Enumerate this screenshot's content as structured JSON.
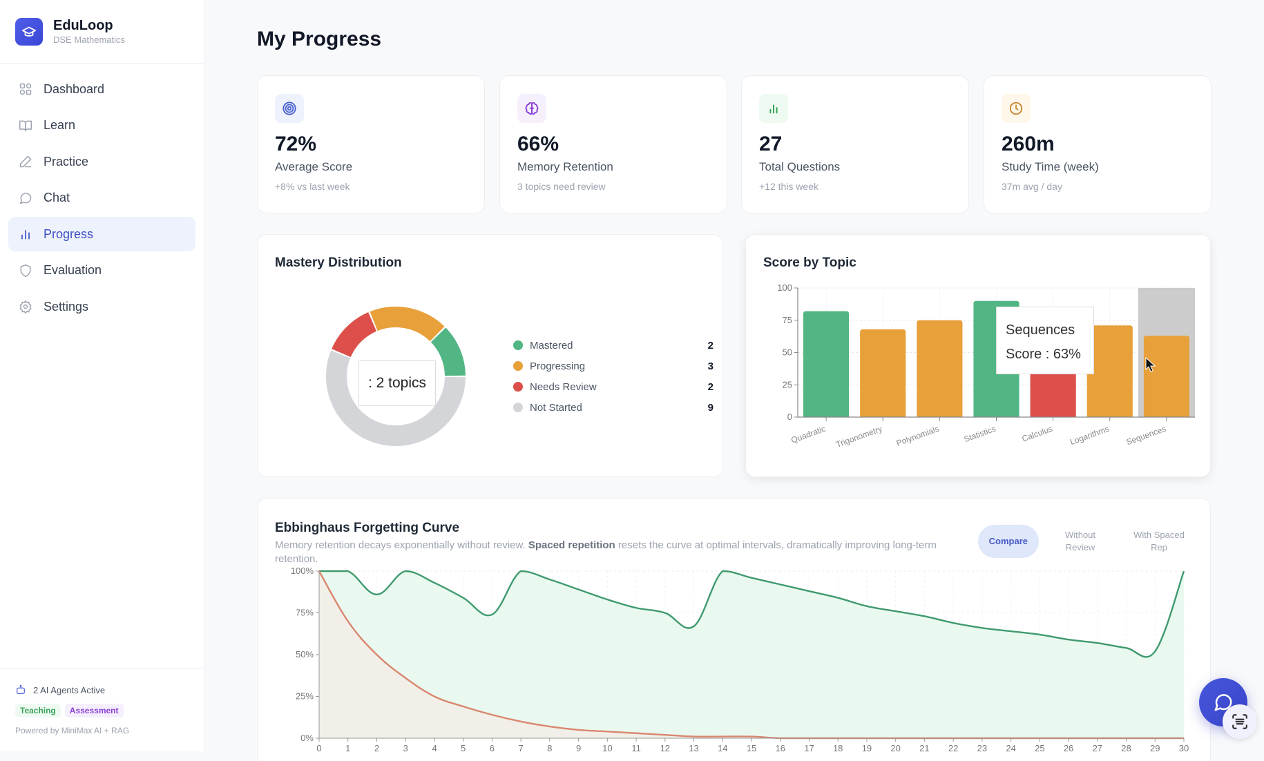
{
  "app": {
    "name": "EduLoop",
    "subtitle": "DSE Mathematics"
  },
  "sidebar": {
    "items": [
      {
        "label": "Dashboard",
        "icon": "grid-icon",
        "active": false
      },
      {
        "label": "Learn",
        "icon": "book-open-icon",
        "active": false
      },
      {
        "label": "Practice",
        "icon": "pencil-icon",
        "active": false
      },
      {
        "label": "Chat",
        "icon": "message-circle-icon",
        "active": false
      },
      {
        "label": "Progress",
        "icon": "bar-chart-icon",
        "active": true
      },
      {
        "label": "Evaluation",
        "icon": "shield-icon",
        "active": false
      },
      {
        "label": "Settings",
        "icon": "gear-icon",
        "active": false
      }
    ],
    "footer": {
      "agents_status": "2 AI Agents Active",
      "tags": [
        "Teaching",
        "Assessment"
      ],
      "powered_by": "Powered by MiniMax AI + RAG"
    }
  },
  "page": {
    "title": "My Progress"
  },
  "stats": [
    {
      "icon": "target-icon",
      "value": "72%",
      "label": "Average Score",
      "sub": "+8% vs last week",
      "color": "#4a5fd0",
      "bg": "#eef2fc"
    },
    {
      "icon": "brain-icon",
      "value": "66%",
      "label": "Memory Retention",
      "sub": "3 topics need review",
      "color": "#8b3fd6",
      "bg": "#f6f0fd"
    },
    {
      "icon": "bar-chart-icon",
      "value": "27",
      "label": "Total Questions",
      "sub": "+12 this week",
      "color": "#3aa35a",
      "bg": "#eefaf1"
    },
    {
      "icon": "clock-icon",
      "value": "260m",
      "label": "Study Time (week)",
      "sub": "37m avg / day",
      "color": "#c9852e",
      "bg": "#fff7ea"
    }
  ],
  "mastery": {
    "title": "Mastery Distribution",
    "tooltip": ": 2 topics"
  },
  "score_by_topic": {
    "title": "Score by Topic",
    "tooltip": {
      "title": "Sequences",
      "line": "Score : 63%"
    }
  },
  "forgetting": {
    "title": "Ebbinghaus Forgetting Curve",
    "desc_pre": "Memory retention decays exponentially without review. ",
    "desc_bold": "Spaced repetition",
    "desc_post": " resets the curve at optimal intervals, dramatically improving long-term retention.",
    "modes": [
      {
        "label": "Compare",
        "active": true
      },
      {
        "label": "Without Review",
        "active": false
      },
      {
        "label": "With Spaced Rep",
        "active": false
      }
    ]
  },
  "chart_data": [
    {
      "type": "pie",
      "title": "Mastery Distribution",
      "donut": true,
      "categories": [
        "Mastered",
        "Progressing",
        "Needs Review",
        "Not Started"
      ],
      "values": [
        2,
        3,
        2,
        9
      ],
      "colors": [
        "#52b584",
        "#e8a03a",
        "#dc4f4a",
        "#d4d5d9"
      ],
      "legend": "right"
    },
    {
      "type": "bar",
      "title": "Score by Topic",
      "categories": [
        "Quadratic",
        "Trigonometry",
        "Polynomials",
        "Statistics",
        "Calculus",
        "Logarithms",
        "Sequences"
      ],
      "values": [
        82,
        68,
        75,
        90,
        55,
        71,
        63
      ],
      "colors": [
        "#52b584",
        "#e8a03a",
        "#e8a03a",
        "#52b584",
        "#dc4f4a",
        "#e8a03a",
        "#e8a03a"
      ],
      "yticks": [
        0,
        25,
        50,
        75,
        100
      ],
      "ylim": [
        0,
        100
      ],
      "xlabel": "",
      "ylabel": "",
      "highlighted": "Sequences",
      "grid": true
    },
    {
      "type": "area",
      "title": "Ebbinghaus Forgetting Curve",
      "x": [
        0,
        1,
        2,
        3,
        4,
        5,
        6,
        7,
        8,
        9,
        10,
        11,
        12,
        13,
        14,
        15,
        16,
        17,
        18,
        19,
        20,
        21,
        22,
        23,
        24,
        25,
        26,
        27,
        28,
        29,
        30
      ],
      "series": [
        {
          "name": "With Spaced Rep",
          "color": "#3f9a6e",
          "fill": "#e8f8ee",
          "values": [
            100,
            100,
            86,
            100,
            93,
            84,
            74,
            100,
            95,
            89,
            83,
            78,
            75,
            67,
            100,
            96,
            92,
            88,
            84,
            79,
            76,
            73,
            69,
            66,
            64,
            62,
            59,
            57,
            54,
            52,
            100
          ]
        },
        {
          "name": "Without Review",
          "color": "#d9876f",
          "fill": "#f2ede6",
          "values": [
            100,
            70,
            50,
            36,
            25,
            19,
            14,
            10,
            7,
            5,
            4,
            3,
            2,
            1,
            1,
            1,
            0,
            0,
            0,
            0,
            0,
            0,
            0,
            0,
            0,
            0,
            0,
            0,
            0,
            0,
            0
          ]
        }
      ],
      "yticks": [
        "0%",
        "25%",
        "50%",
        "75%",
        "100%"
      ],
      "ylim": [
        0,
        100
      ],
      "xlim": [
        0,
        30
      ],
      "grid": true
    }
  ]
}
